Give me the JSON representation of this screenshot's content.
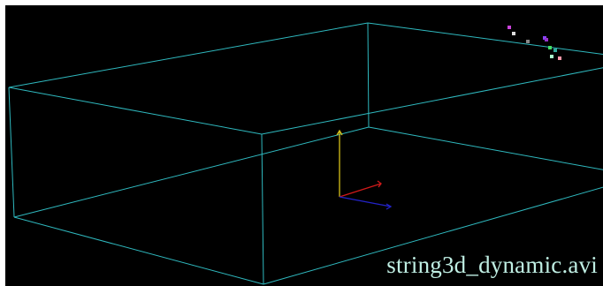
{
  "video": {
    "filename": "string3d_dynamic.avi"
  },
  "colors": {
    "background": "#000000",
    "box_edge": "#2fb9bf",
    "axis_x": "#d11a1a",
    "axis_y": "#d8c21a",
    "axis_z": "#2323c8",
    "caption": "#bfeee3"
  },
  "particles": [
    {
      "color": "#cc44dd"
    },
    {
      "color": "#dddddd"
    },
    {
      "color": "#888888"
    },
    {
      "color": "#8844ff"
    },
    {
      "color": "#9933cc"
    },
    {
      "color": "#44dd66"
    },
    {
      "color": "#33aa99"
    },
    {
      "color": "#aaffcc"
    },
    {
      "color": "#ff99aa"
    }
  ]
}
